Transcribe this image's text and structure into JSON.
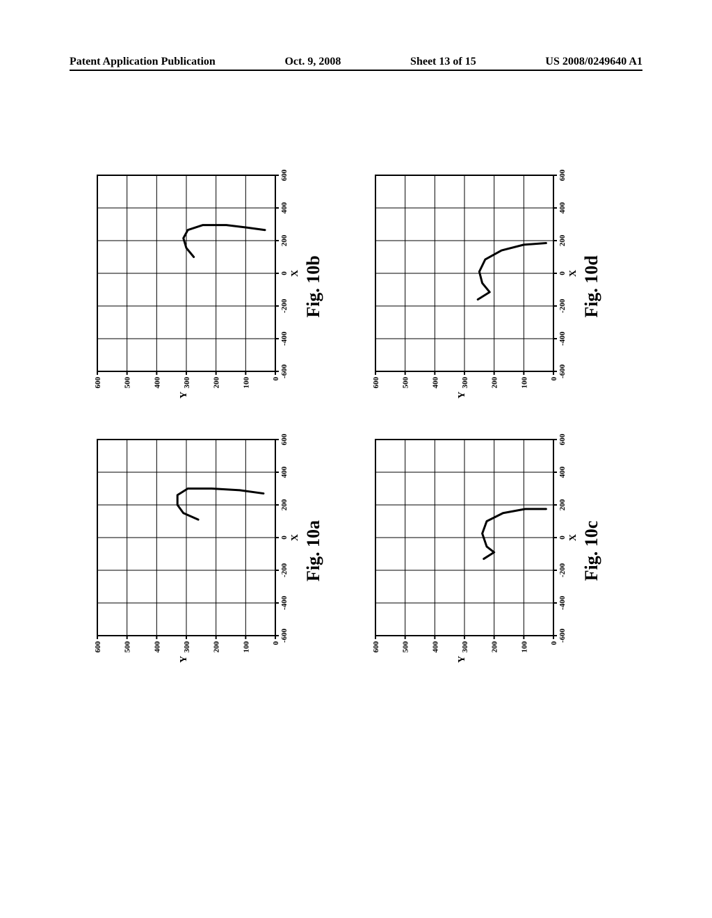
{
  "header": {
    "left": "Patent Application Publication",
    "middle_date": "Oct. 9, 2008",
    "middle_sheet": "Sheet 13 of 15",
    "right": "US 2008/0249640 A1"
  },
  "axes": {
    "x_label": "X",
    "y_label": "Y",
    "x_min": -600,
    "x_max": 600,
    "y_min": 0,
    "y_max": 600,
    "x_ticks": [
      -600,
      -400,
      -200,
      0,
      200,
      400,
      600
    ],
    "y_ticks": [
      0,
      100,
      200,
      300,
      400,
      500,
      600
    ],
    "tick_fontsize": 11,
    "label_fontsize": 14,
    "line_width": 2,
    "line_color": "#000000",
    "bg_color": "#ffffff"
  },
  "panels": {
    "a": {
      "caption": "Fig. 10a",
      "points": [
        [
          110,
          260
        ],
        [
          150,
          310
        ],
        [
          200,
          330
        ],
        [
          260,
          330
        ],
        [
          300,
          295
        ],
        [
          300,
          215
        ],
        [
          290,
          120
        ],
        [
          270,
          40
        ]
      ]
    },
    "b": {
      "caption": "Fig. 10b",
      "points": [
        [
          100,
          275
        ],
        [
          155,
          300
        ],
        [
          215,
          310
        ],
        [
          265,
          295
        ],
        [
          295,
          245
        ],
        [
          295,
          165
        ],
        [
          280,
          95
        ],
        [
          265,
          35
        ]
      ]
    },
    "c": {
      "caption": "Fig. 10c",
      "points": [
        [
          -130,
          235
        ],
        [
          -90,
          200
        ],
        [
          -55,
          225
        ],
        [
          25,
          240
        ],
        [
          100,
          225
        ],
        [
          150,
          170
        ],
        [
          175,
          95
        ],
        [
          175,
          25
        ]
      ]
    },
    "d": {
      "caption": "Fig. 10d",
      "points": [
        [
          -160,
          255
        ],
        [
          -115,
          215
        ],
        [
          -60,
          240
        ],
        [
          10,
          250
        ],
        [
          85,
          230
        ],
        [
          140,
          175
        ],
        [
          175,
          100
        ],
        [
          185,
          25
        ]
      ]
    }
  },
  "style": {
    "curve_width": 3,
    "curve_color": "#000000",
    "grid_major": true
  }
}
